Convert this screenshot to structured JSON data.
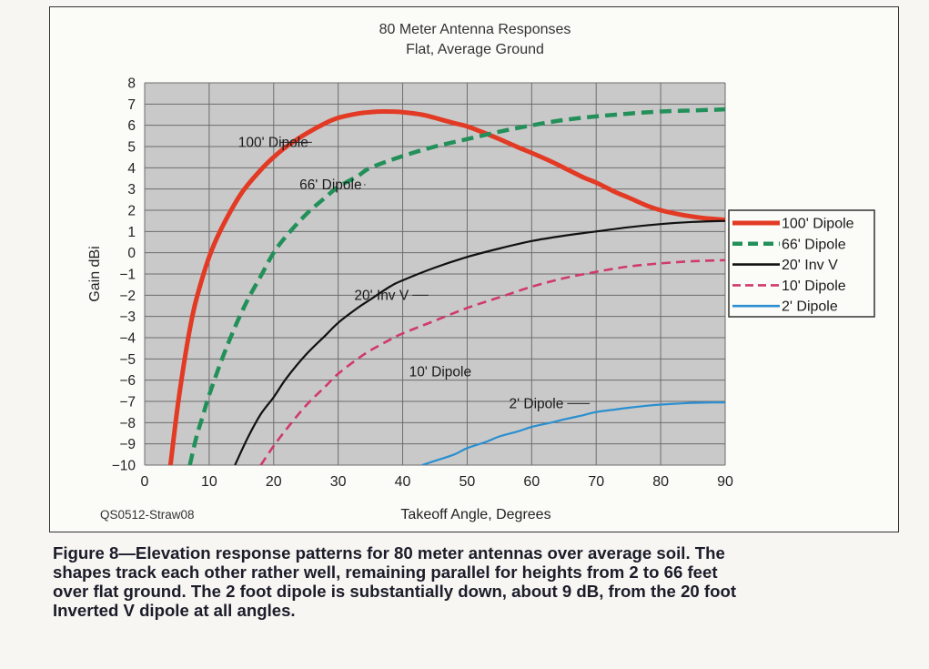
{
  "chart_data": {
    "type": "line",
    "title": "80 Meter Antenna Responses",
    "subtitle": "Flat, Average Ground",
    "xlabel": "Takeoff Angle, Degrees",
    "ylabel": "Gain dBi",
    "xlim": [
      0,
      90
    ],
    "ylim": [
      -10,
      8
    ],
    "xticks": [
      0,
      10,
      20,
      30,
      40,
      50,
      60,
      70,
      80,
      90
    ],
    "yticks": [
      8,
      7,
      6,
      5,
      4,
      3,
      2,
      1,
      0,
      -1,
      -2,
      -3,
      -4,
      -5,
      -6,
      -7,
      -8,
      -9,
      -10
    ],
    "ytick_labels": [
      "8",
      "7",
      "6",
      "5",
      "4",
      "3",
      "2",
      "1",
      "0",
      "−1",
      "−2",
      "−3",
      "−4",
      "−5",
      "−6",
      "−7",
      "−8",
      "−9",
      "−10"
    ],
    "grid": true,
    "legend_position": "right",
    "series": [
      {
        "name": "100' Dipole",
        "color": "#e23a24",
        "dash": "solid",
        "x": [
          4,
          5,
          6,
          7,
          8,
          10,
          12,
          15,
          18,
          20,
          22,
          25,
          28,
          30,
          33,
          35,
          37,
          40,
          43,
          45,
          48,
          50,
          53,
          55,
          58,
          60,
          63,
          65,
          68,
          70,
          73,
          75,
          78,
          80,
          83,
          85,
          87,
          90
        ],
        "y": [
          -10,
          -7.5,
          -5.4,
          -3.6,
          -2.2,
          -0.2,
          1.2,
          2.8,
          3.9,
          4.5,
          5.0,
          5.6,
          6.1,
          6.35,
          6.55,
          6.62,
          6.65,
          6.62,
          6.5,
          6.35,
          6.1,
          5.95,
          5.6,
          5.35,
          4.95,
          4.7,
          4.3,
          4.0,
          3.55,
          3.3,
          2.85,
          2.6,
          2.2,
          2.0,
          1.8,
          1.7,
          1.62,
          1.55
        ]
      },
      {
        "name": "66' Dipole",
        "color": "#23905a",
        "dash": "dashed",
        "x": [
          7,
          8,
          9,
          10,
          12,
          14,
          16,
          18,
          20,
          22,
          25,
          28,
          30,
          33,
          35,
          40,
          45,
          50,
          55,
          60,
          65,
          70,
          75,
          80,
          85,
          90
        ],
        "y": [
          -10,
          -8.7,
          -7.7,
          -6.7,
          -5.0,
          -3.5,
          -2.2,
          -1.1,
          0.0,
          0.8,
          1.8,
          2.6,
          3.1,
          3.6,
          4.0,
          4.55,
          5.0,
          5.35,
          5.7,
          6.0,
          6.25,
          6.42,
          6.55,
          6.65,
          6.7,
          6.75
        ]
      },
      {
        "name": "20' Inv V",
        "color": "#111111",
        "dash": "solid",
        "x": [
          14,
          16,
          18,
          20,
          22,
          25,
          28,
          30,
          33,
          35,
          38,
          40,
          45,
          50,
          55,
          60,
          65,
          70,
          75,
          80,
          85,
          90
        ],
        "y": [
          -10,
          -8.7,
          -7.6,
          -6.8,
          -5.9,
          -4.8,
          -3.9,
          -3.3,
          -2.6,
          -2.2,
          -1.6,
          -1.3,
          -0.7,
          -0.2,
          0.2,
          0.55,
          0.8,
          1.0,
          1.2,
          1.35,
          1.45,
          1.5
        ]
      },
      {
        "name": "10' Dipole",
        "color": "#d03a6b",
        "dash": "dashed",
        "x": [
          18,
          20,
          22,
          25,
          28,
          30,
          33,
          35,
          38,
          40,
          45,
          50,
          55,
          60,
          65,
          70,
          75,
          80,
          85,
          90
        ],
        "y": [
          -10,
          -9.1,
          -8.3,
          -7.2,
          -6.3,
          -5.7,
          -5.0,
          -4.6,
          -4.1,
          -3.8,
          -3.2,
          -2.6,
          -2.1,
          -1.6,
          -1.2,
          -0.9,
          -0.65,
          -0.5,
          -0.4,
          -0.35
        ]
      },
      {
        "name": "2' Dipole",
        "color": "#2a8fd0",
        "dash": "solid",
        "x": [
          43,
          45,
          48,
          50,
          53,
          55,
          58,
          60,
          63,
          65,
          68,
          70,
          73,
          75,
          78,
          80,
          83,
          85,
          88,
          90
        ],
        "y": [
          -10,
          -9.8,
          -9.5,
          -9.2,
          -8.9,
          -8.65,
          -8.4,
          -8.2,
          -8.0,
          -7.85,
          -7.65,
          -7.5,
          -7.38,
          -7.3,
          -7.2,
          -7.15,
          -7.1,
          -7.07,
          -7.05,
          -7.05
        ]
      }
    ],
    "annotations": [
      {
        "text": "100' Dipole",
        "x": 14.5,
        "y": 5.2,
        "leader_to": [
          21,
          5.2
        ]
      },
      {
        "text": "66' Dipole",
        "x": 24,
        "y": 3.2,
        "leader_to": [
          34,
          3.2
        ]
      },
      {
        "text": "20' Inv V",
        "x": 32.5,
        "y": -2.0,
        "leader_to": [
          44,
          -2.0
        ]
      },
      {
        "text": "10' Dipole",
        "x": 41,
        "y": -5.6,
        "leader_to": null
      },
      {
        "text": "2' Dipole",
        "x": 56.5,
        "y": -7.1,
        "leader_to": [
          69,
          -7.1
        ]
      }
    ]
  },
  "figure_code": "QS0512-Straw08",
  "caption": [
    "Figure 8—Elevation response patterns for 80 meter antennas over average soil. The",
    "shapes track each other rather well, remaining parallel for heights from 2 to 66 feet",
    "over flat ground. The 2 foot dipole is substantially down, about 9 dB, from the 20 foot",
    "Inverted V dipole at all angles."
  ]
}
